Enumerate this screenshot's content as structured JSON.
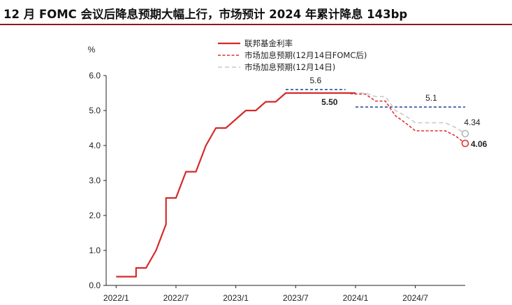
{
  "title": "12 月 FOMC 会议后降息预期大幅上行，市场预计 2024 年累计降息 143bp",
  "colors": {
    "fed": "#d42a2a",
    "market_after": "#e03030",
    "market_before": "#c8c8c8",
    "dot_plot": "#1f3f8f",
    "title_rule": "#8a1c1c",
    "axis": "#222222"
  },
  "chart_data": {
    "type": "line",
    "ylabel": "%",
    "ylim": [
      0.0,
      6.0
    ],
    "yticks": [
      "0.0",
      "1.0",
      "2.0",
      "3.0",
      "4.0",
      "5.0",
      "6.0"
    ],
    "xlim": [
      "2021-12",
      "2024-12"
    ],
    "xticks": [
      {
        "label": "2022/1",
        "x": "2022-01"
      },
      {
        "label": "2022/7",
        "x": "2022-07"
      },
      {
        "label": "2023/1",
        "x": "2023-01"
      },
      {
        "label": "2023/7",
        "x": "2023-07"
      },
      {
        "label": "2024/1",
        "x": "2024-01"
      },
      {
        "label": "2024/7",
        "x": "2024-07"
      }
    ],
    "legend": [
      "联邦基金利率",
      "市场加息预期(12月14日FOMC后)",
      "市场加息预期(12月14日)"
    ],
    "legend_position": "top-right",
    "series": [
      {
        "name": "联邦基金利率",
        "style": "solid",
        "x": [
          "2022-01",
          "2022-03",
          "2022-03",
          "2022-04",
          "2022-05",
          "2022-06",
          "2022-06",
          "2022-07",
          "2022-08",
          "2022-09",
          "2022-10",
          "2022-11",
          "2022-12",
          "2023-01",
          "2023-02",
          "2023-03",
          "2023-04",
          "2023-05",
          "2023-06",
          "2023-07",
          "2023-08",
          "2023-09",
          "2023-10",
          "2023-11",
          "2023-12",
          "2024-01"
        ],
        "y": [
          0.25,
          0.25,
          0.5,
          0.5,
          1.0,
          1.75,
          2.5,
          2.5,
          3.25,
          3.25,
          4.0,
          4.5,
          4.5,
          4.75,
          5.0,
          5.0,
          5.25,
          5.25,
          5.5,
          5.5,
          5.5,
          5.5,
          5.5,
          5.5,
          5.5,
          5.5
        ]
      },
      {
        "name": "市场加息预期(12月14日FOMC后)",
        "style": "dashed",
        "x": [
          "2023-12",
          "2024-01",
          "2024-02",
          "2024-03",
          "2024-04",
          "2024-05",
          "2024-06",
          "2024-07",
          "2024-08",
          "2024-09",
          "2024-10",
          "2024-11",
          "2024-12"
        ],
        "y": [
          5.5,
          5.47,
          5.47,
          5.27,
          5.27,
          4.85,
          4.65,
          4.42,
          4.42,
          4.42,
          4.42,
          4.28,
          4.06
        ]
      },
      {
        "name": "市场加息预期(12月14日)",
        "style": "dashed",
        "x": [
          "2023-12",
          "2024-01",
          "2024-02",
          "2024-03",
          "2024-04",
          "2024-05",
          "2024-06",
          "2024-07",
          "2024-08",
          "2024-09",
          "2024-10",
          "2024-11",
          "2024-12"
        ],
        "y": [
          5.5,
          5.5,
          5.5,
          5.4,
          5.4,
          5.0,
          4.85,
          4.65,
          4.65,
          4.65,
          4.65,
          4.52,
          4.34
        ]
      }
    ],
    "reference_lines": [
      {
        "label": "5.6",
        "y": 5.6,
        "x_start": "2023-06",
        "x_end": "2023-12"
      },
      {
        "label": "5.1",
        "y": 5.1,
        "x_start": "2024-01",
        "x_end": "2024-12"
      }
    ],
    "annotations": [
      {
        "text": "5.50",
        "series": 0,
        "point": "last"
      },
      {
        "text": "4.06",
        "series": 1,
        "point": "last"
      },
      {
        "text": "4.34",
        "series": 2,
        "point": "last"
      }
    ]
  }
}
